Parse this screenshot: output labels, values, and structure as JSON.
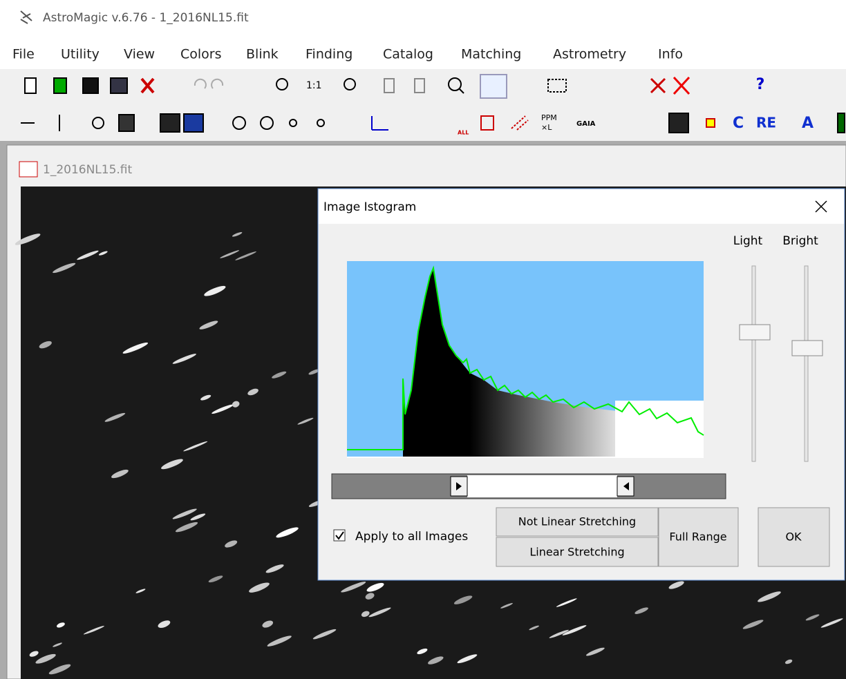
{
  "window": {
    "title": "AstroMagic v.6.76 - 1_2016NL15.fit"
  },
  "menu": [
    "File",
    "Utility",
    "View",
    "Colors",
    "Blink",
    "Finding",
    "Catalog",
    "Matching",
    "Astrometry",
    "Info"
  ],
  "toolbar1": {
    "zoom_label": "1:1",
    "help": "?"
  },
  "toolbar2": {
    "all": "ALL",
    "ppm": "PPM",
    "xl": "×L",
    "gaia": "GAIA",
    "c": "C",
    "re": "RE",
    "a": "A"
  },
  "child": {
    "title": "1_2016NL15.fit"
  },
  "dialog": {
    "title": "Image Istogram",
    "light": "Light",
    "bright": "Bright",
    "apply": "Apply to all Images",
    "not_linear": "Not Linear Stretching",
    "linear": "Linear Stretching",
    "full_range": "Full Range",
    "ok": "OK"
  }
}
